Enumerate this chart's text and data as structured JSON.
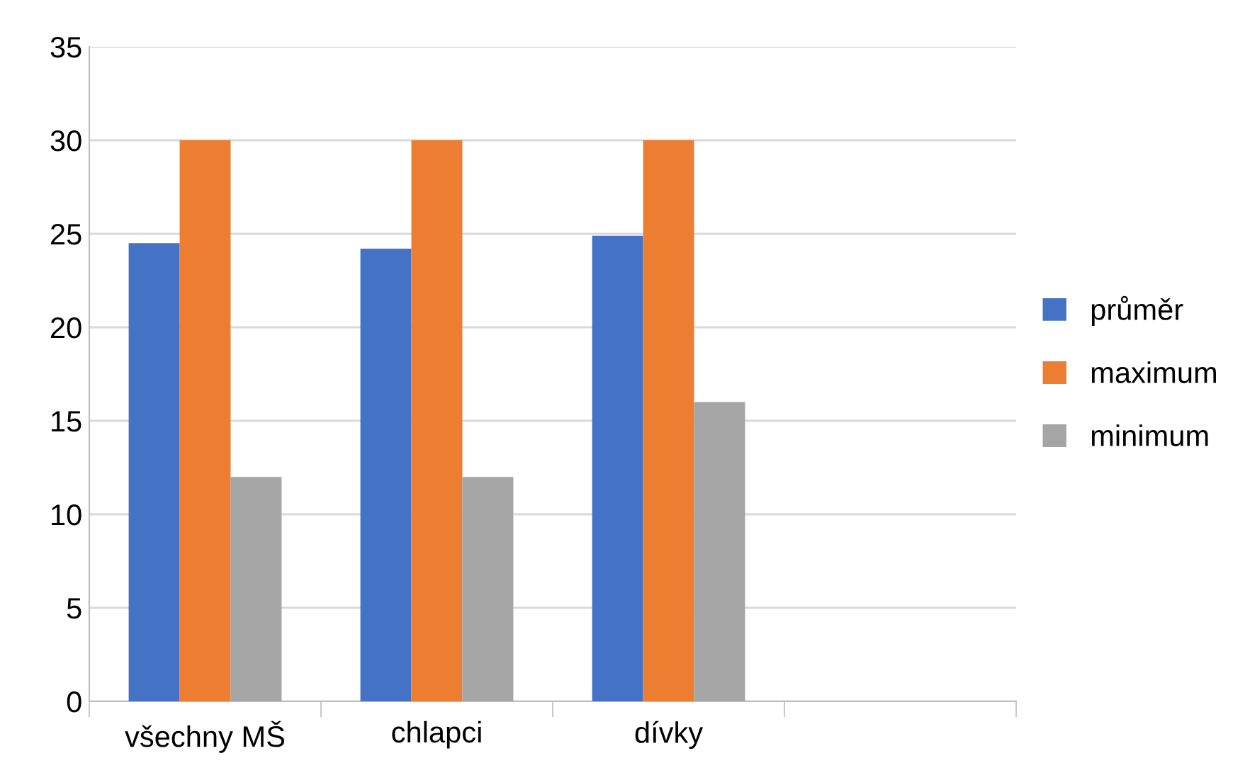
{
  "chart_data": {
    "type": "bar",
    "categories": [
      "všechny MŠ",
      "chlapci",
      "dívky",
      null
    ],
    "series": [
      {
        "name": "průměr",
        "color": "#4472c4",
        "values": [
          24.5,
          24.2,
          24.9,
          null
        ]
      },
      {
        "name": "maximum",
        "color": "#ed7d31",
        "values": [
          30,
          30,
          30,
          null
        ]
      },
      {
        "name": "minimum",
        "color": "#a5a5a5",
        "values": [
          12,
          12,
          16,
          null
        ]
      }
    ],
    "ylim": [
      0,
      35
    ],
    "yticks": [
      0,
      5,
      10,
      15,
      20,
      25,
      30,
      35
    ],
    "grid": "y",
    "legend": "right"
  }
}
